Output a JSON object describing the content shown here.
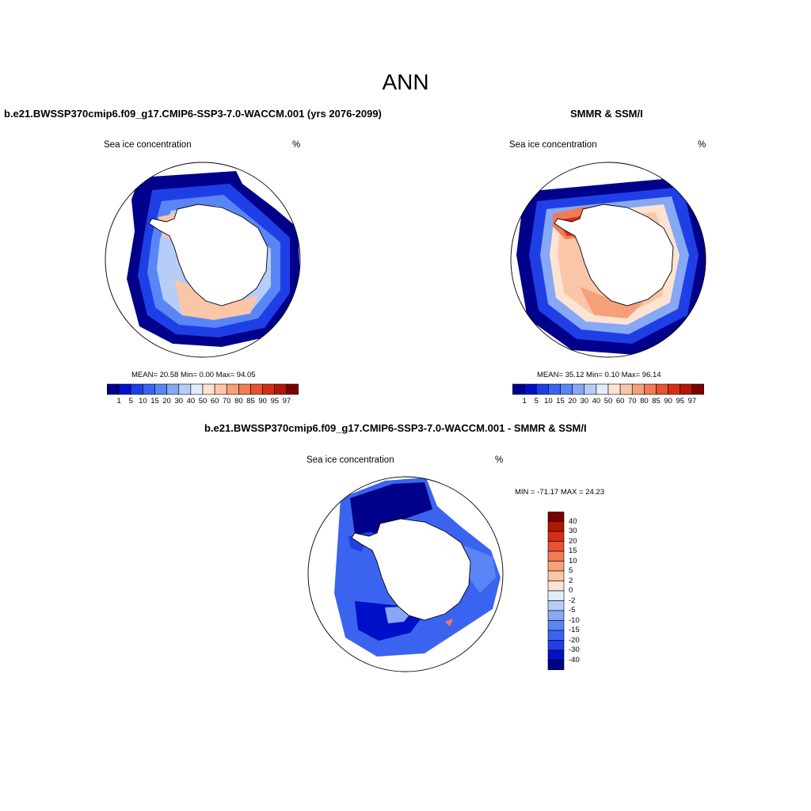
{
  "title": "ANN",
  "panels": [
    {
      "title": "b.e21.BWSSP370cmip6.f09_g17.CMIP6-SSP3-7.0-WACCM.001 (yrs 2076-2099)",
      "variable": "Sea ice concentration",
      "units": "%",
      "stats": "MEAN=  20.58  Min=   0.00  Max=  94.05"
    },
    {
      "title": "SMMR & SSM/I",
      "variable": "Sea ice concentration",
      "units": "%",
      "stats": "MEAN=  35.12  Min=   0.10  Max=  96.14"
    },
    {
      "title": "b.e21.BWSSP370cmip6.f09_g17.CMIP6-SSP3-7.0-WACCM.001 - SMMR & SSM/I",
      "variable": "Sea ice concentration",
      "units": "%",
      "stats": "MIN = -71.17 MAX =  24.23"
    }
  ],
  "concentration_colorbar": {
    "labels": [
      "1",
      "5",
      "10",
      "15",
      "20",
      "30",
      "40",
      "50",
      "60",
      "70",
      "80",
      "85",
      "90",
      "95",
      "97"
    ],
    "colors": [
      "#00008b",
      "#0010c8",
      "#1f3fe6",
      "#3a64f0",
      "#5a86f5",
      "#86a8f5",
      "#b5cdf7",
      "#e2ecfb",
      "#fde4d2",
      "#fbc6a8",
      "#f6a07a",
      "#f07b55",
      "#e8522e",
      "#d62e14",
      "#b01705",
      "#7a0000"
    ]
  },
  "difference_colorbar": {
    "labels": [
      "40",
      "30",
      "20",
      "15",
      "10",
      "5",
      "2",
      "0",
      "-2",
      "-5",
      "-10",
      "-15",
      "-20",
      "-30",
      "-40"
    ],
    "colors": [
      "#7a0000",
      "#b01705",
      "#d62e14",
      "#e8522e",
      "#f07b55",
      "#f6a07a",
      "#fbc6a8",
      "#fde4d2",
      "#e2ecfb",
      "#b5cdf7",
      "#86a8f5",
      "#5a86f5",
      "#3a64f0",
      "#1f3fe6",
      "#0010c8",
      "#00008b"
    ]
  }
}
